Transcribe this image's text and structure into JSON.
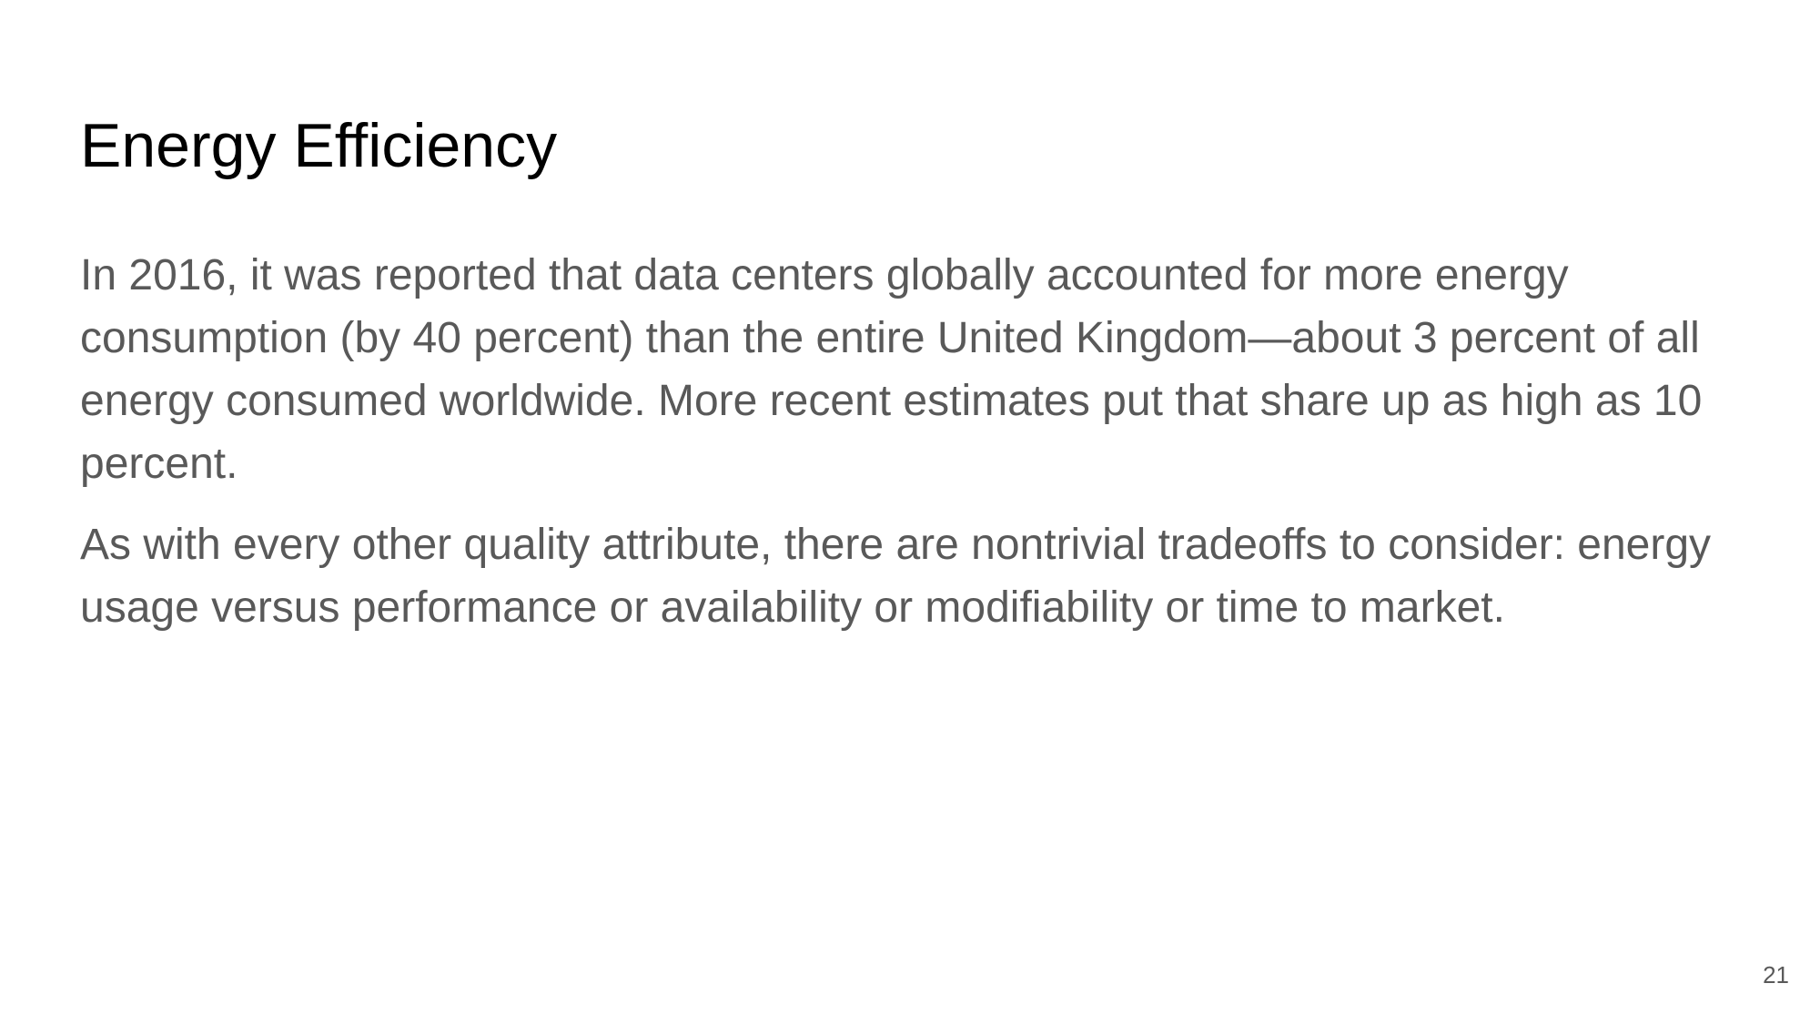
{
  "slide": {
    "title": "Energy Efficiency",
    "paragraphs": [
      "In 2016, it was reported that data centers globally accounted for more energy consumption (by 40 percent) than the entire United Kingdom—about 3 percent of all energy consumed worldwide. More recent estimates put that share up as high as 10 percent.",
      "As with every other quality attribute, there are nontrivial tradeoffs to consider: energy usage versus performance or availability or modifiability or time to market."
    ],
    "page_number": "21"
  },
  "colors": {
    "background": "#ffffff",
    "title": "#000000",
    "body_text": "#595959"
  }
}
